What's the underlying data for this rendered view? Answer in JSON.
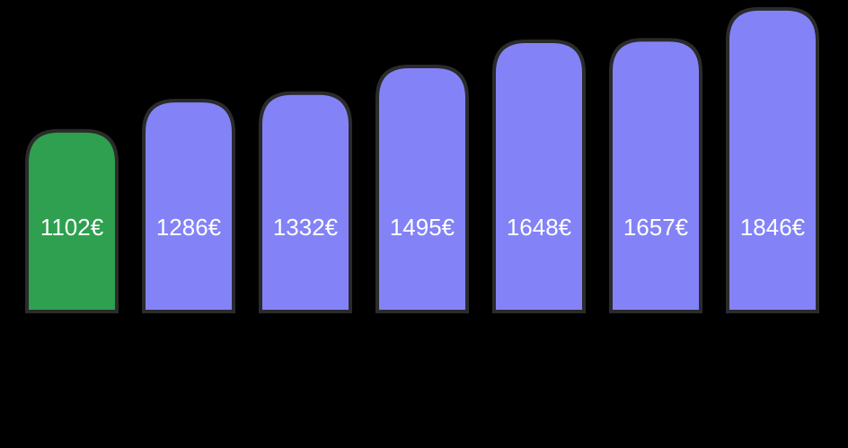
{
  "colors": {
    "background": "#000000",
    "highlight": "#2ea04f",
    "default": "#8383f7",
    "bar_outline": "#2b2b2b",
    "value_text": "#ffffff",
    "category_text": "#111111"
  },
  "chart_data": {
    "type": "bar",
    "title": "",
    "xlabel": "",
    "ylabel": "",
    "grid": false,
    "ylim": [
      0,
      1900
    ],
    "categories": [
      [
        "",
        ""
      ],
      [
        "",
        "",
        ""
      ],
      [
        "",
        ""
      ],
      [
        "",
        "",
        ""
      ],
      [
        "",
        ""
      ],
      [
        "",
        "",
        ""
      ],
      [
        "",
        ""
      ]
    ],
    "values": [
      1102,
      1286,
      1332,
      1495,
      1648,
      1657,
      1846
    ],
    "value_labels": [
      "1102€",
      "1286€",
      "1332€",
      "1495€",
      "1648€",
      "1657€",
      "1846€"
    ],
    "highlight_index": 0
  }
}
